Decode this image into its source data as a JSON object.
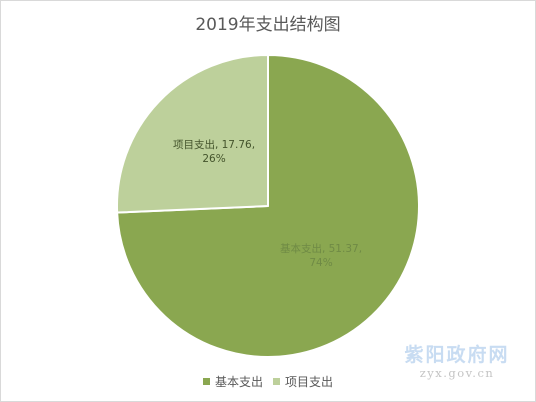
{
  "chart_data": {
    "type": "pie",
    "title": "2019年支出结构图",
    "categories": [
      "基本支出",
      "项目支出"
    ],
    "values": [
      51.37,
      17.76
    ],
    "percent_labels": [
      "74%",
      "26%"
    ],
    "data_labels": [
      "基本支出, 51.37,",
      "项目支出, 17.76,"
    ],
    "colors": [
      "#8aa750",
      "#bdd09b"
    ],
    "label_colors": [
      "#6f8a45",
      "#44542c"
    ],
    "legend_position": "bottom"
  },
  "watermark": {
    "logo": "紫阳政府网",
    "url": "zyx.gov.cn"
  }
}
